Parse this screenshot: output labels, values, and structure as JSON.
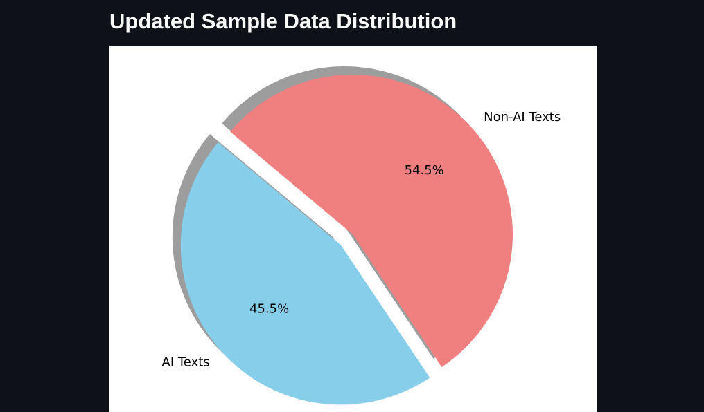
{
  "page": {
    "title": "Updated Sample Data Distribution"
  },
  "chart_data": {
    "type": "pie",
    "title": "",
    "categories": [
      "AI Texts",
      "Non-AI Texts"
    ],
    "values": [
      45.5,
      54.5
    ],
    "value_labels": [
      "45.5%",
      "54.5%"
    ],
    "colors": [
      "#87ceeb",
      "#f08080"
    ],
    "shadow_color": "#5c5c5c",
    "exploded": [
      "AI Texts"
    ],
    "shadow": true,
    "legend": "none"
  }
}
